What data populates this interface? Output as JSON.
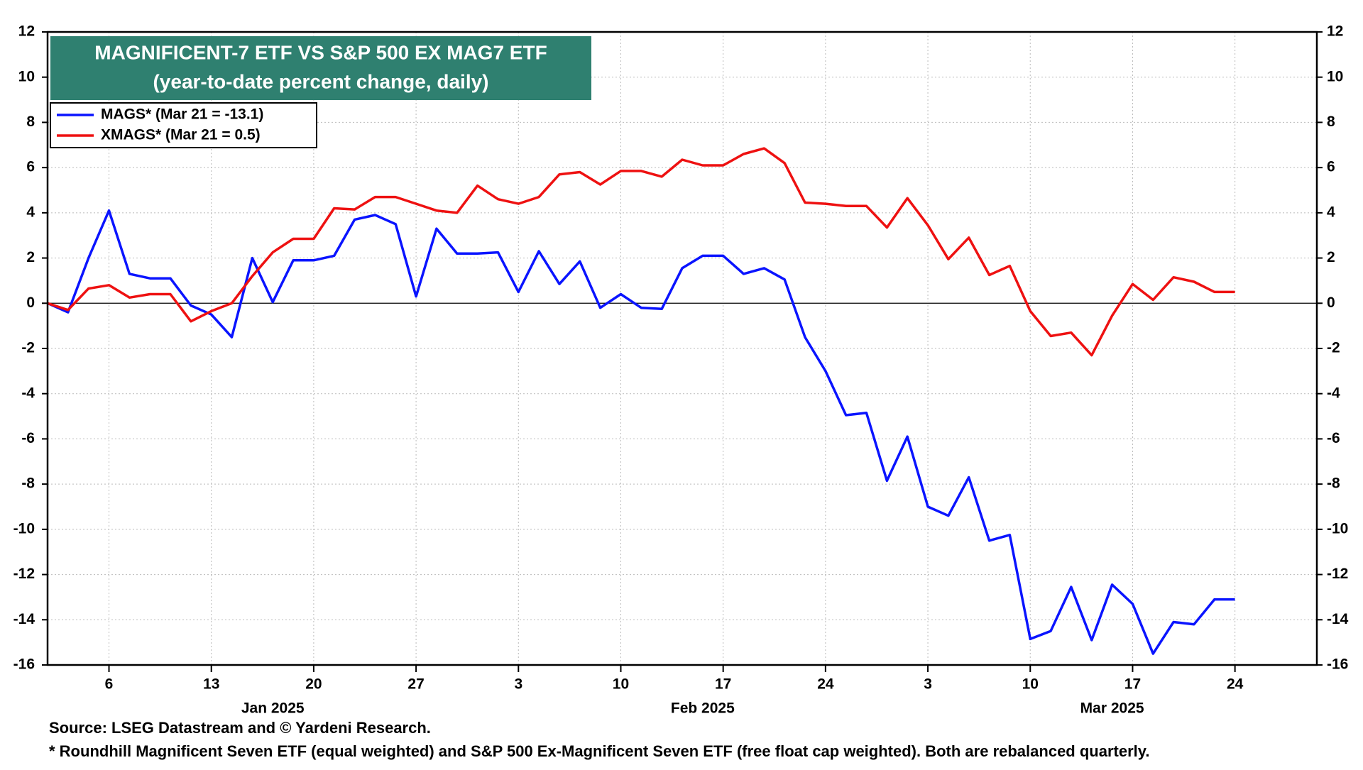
{
  "chart_data": {
    "type": "line",
    "title": "MAGNIFICENT-7 ETF VS S&P 500 EX MAG7 ETF",
    "subtitle": "(year-to-date percent change, daily)",
    "x": [
      "2025-01-01",
      "2025-01-02",
      "2025-01-03",
      "2025-01-06",
      "2025-01-07",
      "2025-01-08",
      "2025-01-09",
      "2025-01-10",
      "2025-01-13",
      "2025-01-14",
      "2025-01-15",
      "2025-01-16",
      "2025-01-17",
      "2025-01-20",
      "2025-01-21",
      "2025-01-22",
      "2025-01-23",
      "2025-01-24",
      "2025-01-27",
      "2025-01-28",
      "2025-01-29",
      "2025-01-30",
      "2025-01-31",
      "2025-02-03",
      "2025-02-04",
      "2025-02-05",
      "2025-02-06",
      "2025-02-07",
      "2025-02-10",
      "2025-02-11",
      "2025-02-12",
      "2025-02-13",
      "2025-02-14",
      "2025-02-17",
      "2025-02-18",
      "2025-02-19",
      "2025-02-20",
      "2025-02-21",
      "2025-02-24",
      "2025-02-25",
      "2025-02-26",
      "2025-02-27",
      "2025-02-28",
      "2025-03-03",
      "2025-03-04",
      "2025-03-05",
      "2025-03-06",
      "2025-03-07",
      "2025-03-10",
      "2025-03-11",
      "2025-03-12",
      "2025-03-13",
      "2025-03-14",
      "2025-03-17",
      "2025-03-18",
      "2025-03-19",
      "2025-03-20",
      "2025-03-21",
      "2025-03-24"
    ],
    "series": [
      {
        "name": "MAGS* (Mar 21 = -13.1)",
        "color": "#0a14ff",
        "values": [
          0,
          -0.4,
          2.0,
          4.1,
          1.3,
          1.1,
          1.1,
          -0.1,
          -0.5,
          -1.5,
          2.0,
          0.05,
          1.9,
          1.9,
          2.1,
          3.7,
          3.9,
          3.5,
          0.3,
          3.3,
          2.2,
          2.2,
          2.25,
          0.5,
          2.3,
          0.85,
          1.85,
          -0.2,
          0.4,
          -0.2,
          -0.25,
          1.55,
          2.1,
          2.1,
          1.3,
          1.55,
          1.05,
          -1.5,
          -3.0,
          -4.95,
          -4.85,
          -7.85,
          -5.9,
          -9.0,
          -9.4,
          -7.7,
          -10.5,
          -10.25,
          -14.85,
          -14.5,
          -12.55,
          -14.9,
          -12.45,
          -13.3,
          -15.5,
          -14.1,
          -14.2,
          -13.1,
          -13.1
        ]
      },
      {
        "name": "XMAGS* (Mar 21 = 0.5)",
        "color": "#ee1111",
        "values": [
          0,
          -0.3,
          0.65,
          0.8,
          0.25,
          0.4,
          0.4,
          -0.8,
          -0.35,
          0.0,
          1.2,
          2.25,
          2.85,
          2.85,
          4.2,
          4.15,
          4.7,
          4.7,
          4.4,
          4.1,
          4.0,
          5.2,
          4.6,
          4.4,
          4.7,
          5.7,
          5.8,
          5.25,
          5.85,
          5.85,
          5.6,
          6.35,
          6.1,
          6.1,
          6.6,
          6.85,
          6.2,
          4.45,
          4.4,
          4.3,
          4.3,
          3.35,
          4.65,
          3.45,
          1.95,
          2.9,
          1.25,
          1.65,
          -0.35,
          -1.45,
          -1.3,
          -2.3,
          -0.55,
          0.85,
          0.15,
          1.15,
          0.95,
          0.5,
          0.5
        ]
      }
    ],
    "xlim": [
      "2025-01-01",
      "2025-03-28"
    ],
    "xticks": [
      {
        "value": "2025-01-06",
        "label": "6"
      },
      {
        "value": "2025-01-13",
        "label": "13"
      },
      {
        "value": "2025-01-20",
        "label": "20"
      },
      {
        "value": "2025-01-27",
        "label": "27"
      },
      {
        "value": "2025-02-03",
        "label": "3"
      },
      {
        "value": "2025-02-10",
        "label": "10"
      },
      {
        "value": "2025-02-17",
        "label": "17"
      },
      {
        "value": "2025-02-24",
        "label": "24"
      },
      {
        "value": "2025-03-03",
        "label": "3"
      },
      {
        "value": "2025-03-10",
        "label": "10"
      },
      {
        "value": "2025-03-17",
        "label": "17"
      },
      {
        "value": "2025-03-24",
        "label": "24"
      }
    ],
    "months": [
      {
        "value": "2025-01",
        "label": "Jan 2025"
      },
      {
        "value": "2025-02",
        "label": "Feb 2025"
      },
      {
        "value": "2025-03",
        "label": "Mar 2025"
      }
    ],
    "ylim": [
      -16,
      12
    ],
    "yticks": [
      -16,
      -14,
      -12,
      -10,
      -8,
      -6,
      -4,
      -2,
      0,
      2,
      4,
      6,
      8,
      10,
      12
    ],
    "y2lim": [
      -16,
      12
    ],
    "y2ticks": [
      -16,
      -14,
      -12,
      -10,
      -8,
      -6,
      -4,
      -2,
      0,
      2,
      4,
      6,
      8,
      10,
      12
    ],
    "grid": true,
    "legend": "upper left",
    "notes": [
      "Source: LSEG Datastream and © Yardeni Research.",
      "* Roundhill Magnificent Seven ETF (equal weighted) and S&P 500 Ex-Magnificent Seven ETF (free float cap weighted). Both are rebalanced quarterly."
    ]
  }
}
